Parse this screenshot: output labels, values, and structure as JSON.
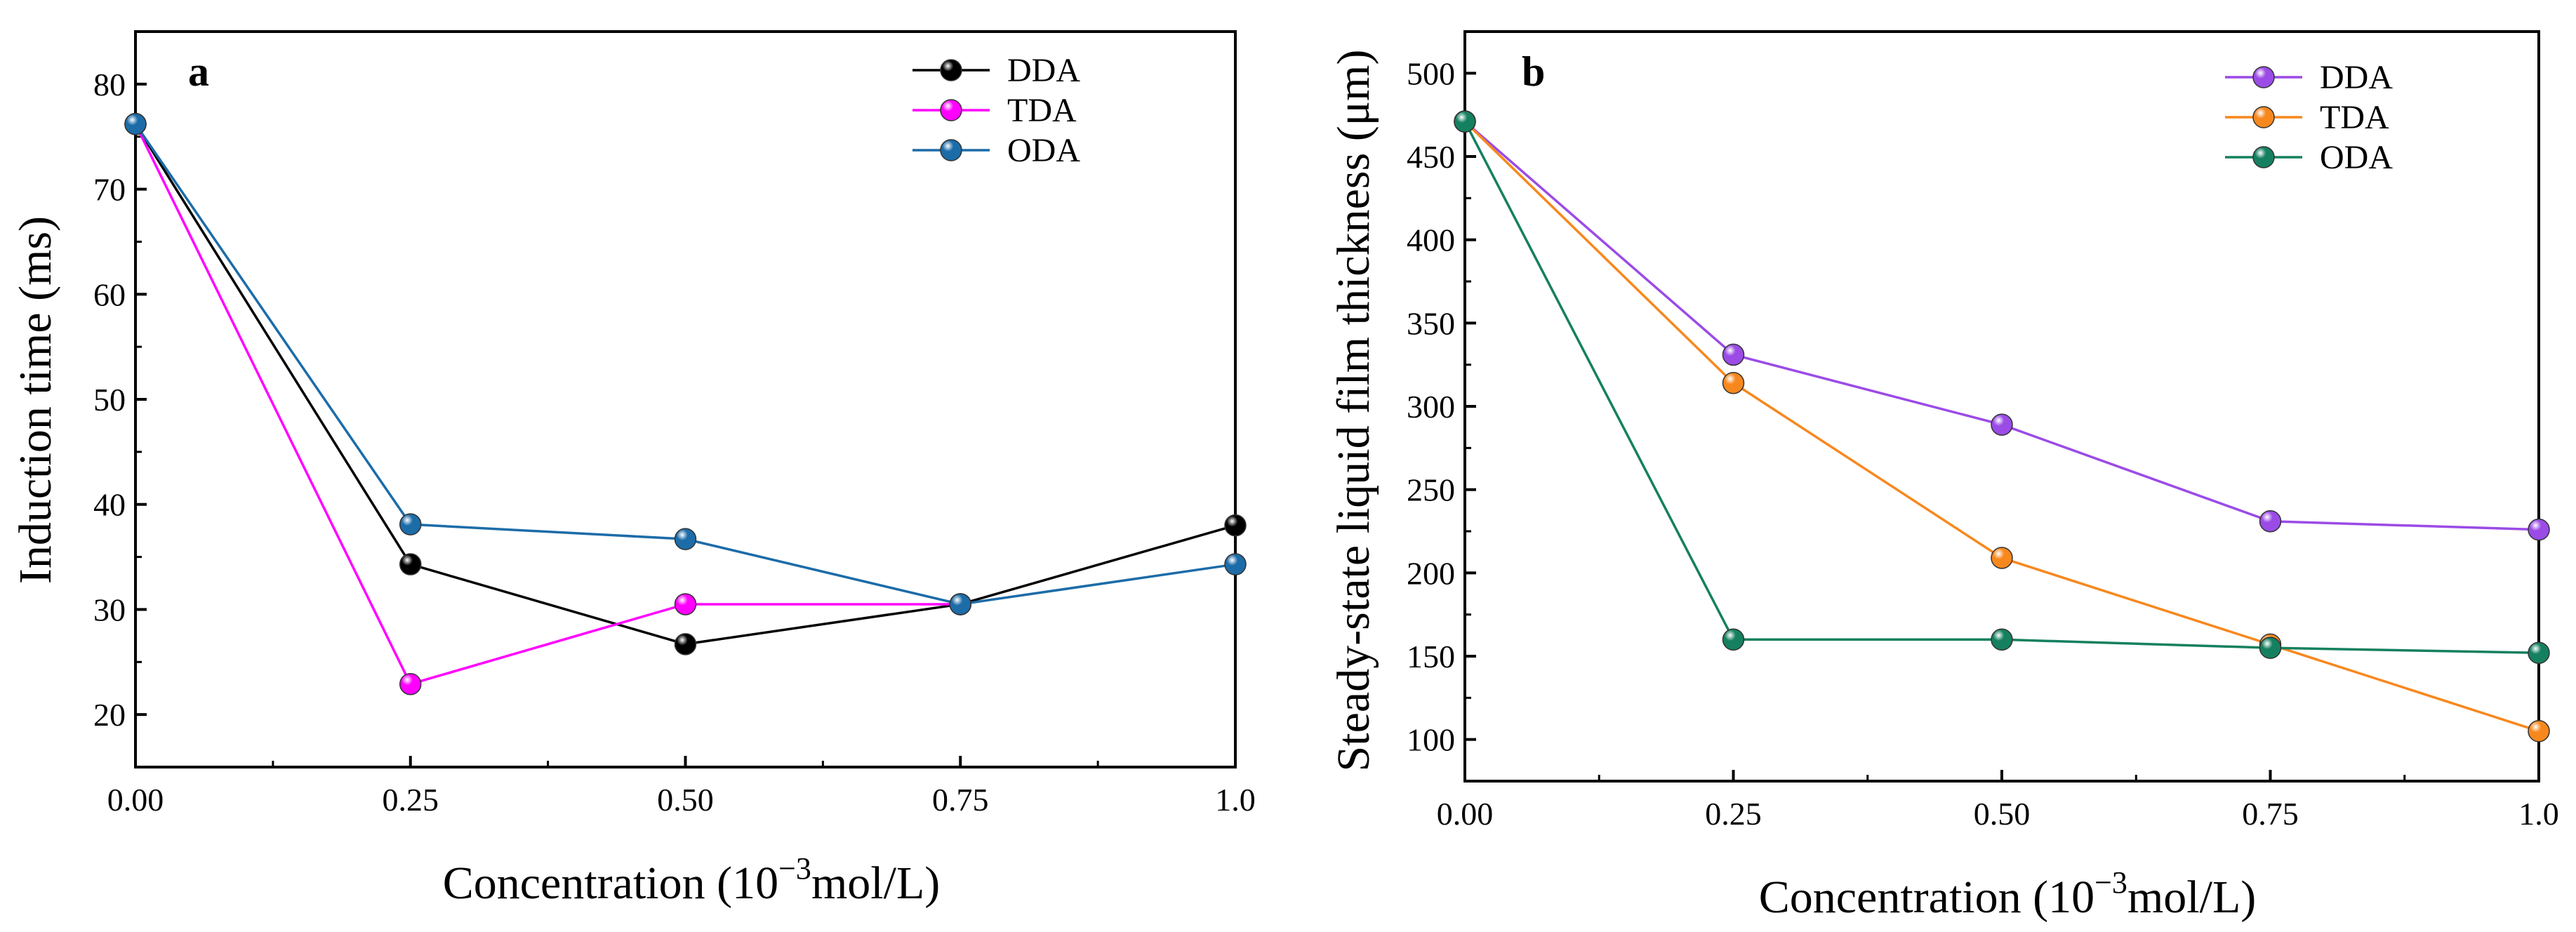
{
  "chart_data": [
    {
      "type": "line",
      "panel_label": "a",
      "title": "",
      "xlabel": "Concentration (10",
      "xlabel_sup": "−3",
      "xlabel_suffix": "mol/L)",
      "ylabel": "Induction time (ms)",
      "xlim": [
        0,
        1.0
      ],
      "ylim": [
        15,
        85
      ],
      "x_ticks": [
        "0.00",
        "0.25",
        "0.50",
        "0.75",
        "1.0"
      ],
      "x_tick_values": [
        0,
        0.25,
        0.5,
        0.75,
        1.0
      ],
      "y_ticks": [
        "20",
        "30",
        "40",
        "50",
        "60",
        "70",
        "80"
      ],
      "y_tick_values": [
        20,
        30,
        40,
        50,
        60,
        70,
        80
      ],
      "legend_position": "top-right",
      "series": [
        {
          "name": "DDA",
          "color": "#000000",
          "x": [
            0,
            0.25,
            0.5,
            0.75,
            1.0
          ],
          "values": [
            76.2,
            34.3,
            26.7,
            30.5,
            38.0
          ]
        },
        {
          "name": "TDA",
          "color": "#ff00ff",
          "x": [
            0,
            0.25,
            0.5,
            0.75
          ],
          "values": [
            76.2,
            22.9,
            30.5,
            30.5
          ]
        },
        {
          "name": "ODA",
          "color": "#1c6ca8",
          "x": [
            0,
            0.25,
            0.5,
            0.75,
            1.0
          ],
          "values": [
            76.2,
            38.1,
            36.7,
            30.5,
            34.3
          ]
        }
      ]
    },
    {
      "type": "line",
      "panel_label": "b",
      "title": "",
      "xlabel": "Concentration (10",
      "xlabel_sup": "−3",
      "xlabel_suffix": "mol/L)",
      "ylabel": "Steady-state liquid film thickness (μm)",
      "xlim": [
        0,
        1.0
      ],
      "ylim": [
        75,
        525
      ],
      "x_ticks": [
        "0.00",
        "0.25",
        "0.50",
        "0.75",
        "1.0"
      ],
      "x_tick_values": [
        0,
        0.25,
        0.5,
        0.75,
        1.0
      ],
      "y_ticks": [
        "100",
        "150",
        "200",
        "250",
        "300",
        "350",
        "400",
        "450",
        "500"
      ],
      "y_tick_values": [
        100,
        150,
        200,
        250,
        300,
        350,
        400,
        450,
        500
      ],
      "legend_position": "top-right",
      "series": [
        {
          "name": "DDA",
          "color": "#9b4be6",
          "x": [
            0,
            0.25,
            0.5,
            0.75,
            1.0
          ],
          "values": [
            471,
            331,
            289,
            231,
            226
          ]
        },
        {
          "name": "TDA",
          "color": "#f7881e",
          "x": [
            0,
            0.25,
            0.5,
            0.75,
            1.0
          ],
          "values": [
            471,
            314,
            209,
            157,
            105
          ]
        },
        {
          "name": "ODA",
          "color": "#15805f",
          "x": [
            0,
            0.25,
            0.5,
            0.75,
            1.0
          ],
          "values": [
            471,
            160,
            160,
            155,
            152
          ]
        }
      ]
    }
  ]
}
